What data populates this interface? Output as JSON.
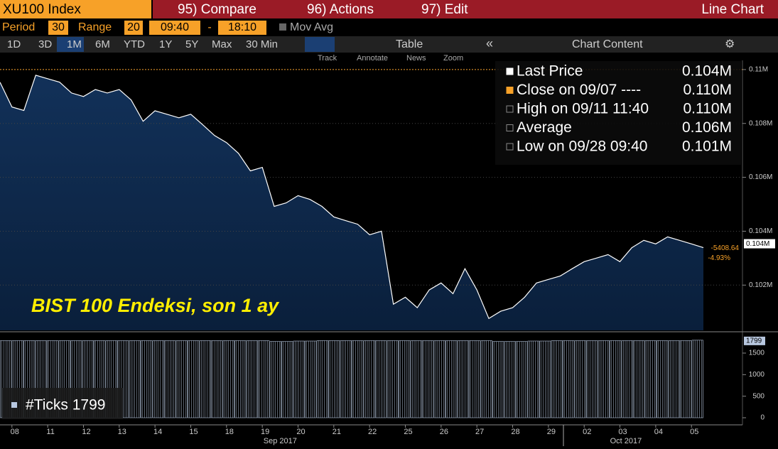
{
  "ui": {
    "ticker": "XU100 Index",
    "compare": "95) Compare",
    "actions": "96) Actions",
    "edit": "97) Edit",
    "chart_kind": "Line Chart",
    "period_label": "Period",
    "period": "30",
    "range_label": "Range",
    "range": "20",
    "start": "09:40",
    "dash": "-",
    "end": "18:10",
    "mov_avg": "Mov Avg",
    "ranges": [
      "1D",
      "3D",
      "1M",
      "6M",
      "YTD",
      "1Y",
      "5Y",
      "Max",
      "30 Min"
    ],
    "table": "Table",
    "chart_content": "Chart Content",
    "tools": [
      "Track",
      "Annotate",
      "News",
      "Zoom"
    ]
  },
  "chart_data": [
    {
      "type": "area",
      "annotation": "BIST 100 Endeksi, son 1 ay",
      "color": "#ffffff",
      "values": [
        0.10953,
        0.10861,
        0.10848,
        0.10979,
        0.10966,
        0.10953,
        0.10913,
        0.109,
        0.10926,
        0.10913,
        0.10926,
        0.10887,
        0.10808,
        0.10847,
        0.10834,
        0.10821,
        0.10834,
        0.10795,
        0.10755,
        0.10729,
        0.10689,
        0.10624,
        0.10637,
        0.10492,
        0.10505,
        0.10532,
        0.10518,
        0.10492,
        0.10453,
        0.10439,
        0.10426,
        0.10387,
        0.104,
        0.10129,
        0.10155,
        0.10116,
        0.10182,
        0.10208,
        0.10168,
        0.10261,
        0.10182,
        0.10076,
        0.10103,
        0.10116,
        0.10155,
        0.10208,
        0.10221,
        0.10234,
        0.10261,
        0.10287,
        0.103,
        0.10313,
        0.10287,
        0.10339,
        0.10366,
        0.10353,
        0.10379,
        0.10366,
        0.10353,
        0.10339
      ],
      "xlim": [
        0,
        59
      ],
      "xticks": [
        {
          "value": 1,
          "label": "08"
        },
        {
          "value": 4,
          "label": "11"
        },
        {
          "value": 7,
          "label": "12"
        },
        {
          "value": 10,
          "label": "13"
        },
        {
          "value": 13,
          "label": "14"
        },
        {
          "value": 16,
          "label": "15"
        },
        {
          "value": 19,
          "label": "18"
        },
        {
          "value": 22,
          "label": "19"
        },
        {
          "value": 25,
          "label": "20"
        },
        {
          "value": 28,
          "label": "21"
        },
        {
          "value": 31,
          "label": "22"
        },
        {
          "value": 34,
          "label": "25"
        },
        {
          "value": 37,
          "label": "26"
        },
        {
          "value": 40,
          "label": "27"
        },
        {
          "value": 43,
          "label": "28"
        },
        {
          "value": 46,
          "label": "29"
        },
        {
          "value": 49,
          "label": "02"
        },
        {
          "value": 52,
          "label": "03"
        },
        {
          "value": 55,
          "label": "04"
        },
        {
          "value": 58,
          "label": "05"
        }
      ],
      "month_ticks": [
        {
          "value": 23.5,
          "label": "Sep 2017"
        },
        {
          "value": 52.5,
          "label": "Oct 2017"
        }
      ],
      "ylim": [
        0.10032,
        0.11034
      ],
      "yticks": [
        {
          "value": 0.102,
          "label": "0.102M"
        },
        {
          "value": 0.104,
          "label": "0.104M"
        },
        {
          "value": 0.106,
          "label": "0.106M"
        },
        {
          "value": 0.108,
          "label": "0.108M"
        },
        {
          "value": 0.11,
          "label": "0.11M"
        }
      ],
      "close": 0.11,
      "last_label": "0.104M",
      "change": "-5408.64",
      "change_pct": "-4.93%",
      "grid": true,
      "legend": [
        {
          "label": "Last Price",
          "value": "0.104M"
        },
        {
          "label": "Close on 09/07 ----",
          "value": "0.110M"
        },
        {
          "label": "High on 09/11 11:40",
          "value": "0.110M"
        },
        {
          "label": "Average",
          "value": "0.106M"
        },
        {
          "label": "Low on 09/28 09:40",
          "value": "0.101M"
        }
      ]
    },
    {
      "type": "bar",
      "name": "#Ticks 1799",
      "color": "#b8c8e0",
      "values": [
        1790,
        1790,
        1790,
        1790,
        1790,
        1790,
        1790,
        1790,
        1790,
        1790,
        1790,
        1790,
        1790,
        1790,
        1790,
        1790,
        1790,
        1790,
        1790,
        1790,
        1790,
        1790,
        1790,
        1770,
        1770,
        1780,
        1780,
        1790,
        1790,
        1790,
        1790,
        1790,
        1790,
        1790,
        1790,
        1790,
        1790,
        1790,
        1790,
        1790,
        1790,
        1790,
        1770,
        1770,
        1770,
        1780,
        1780,
        1790,
        1790,
        1790,
        1790,
        1790,
        1790,
        1790,
        1790,
        1790,
        1790,
        1790,
        1790,
        1799
      ],
      "xlim": [
        0,
        59
      ],
      "ylim": [
        0,
        1945
      ],
      "yticks": [
        0,
        500,
        1000,
        1500
      ],
      "last_label": "1799"
    }
  ]
}
